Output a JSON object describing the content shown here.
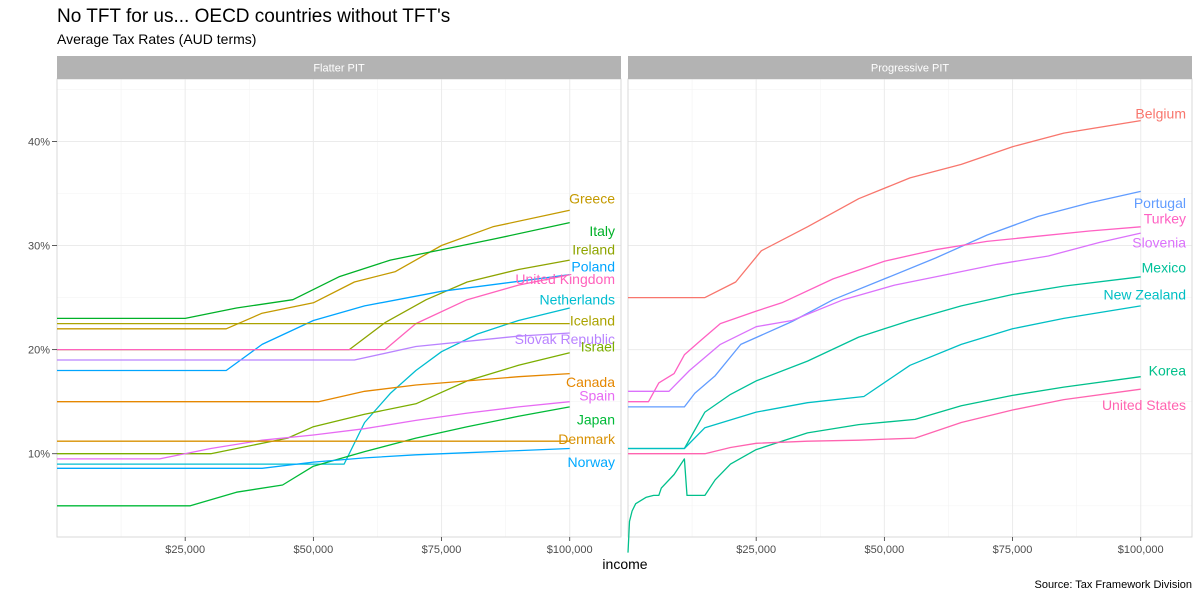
{
  "chart_data": {
    "type": "line",
    "title": "No TFT for us... OECD countries without TFT's",
    "subtitle": "Average Tax Rates (AUD terms)",
    "xlabel": "income",
    "ylabel": "",
    "caption": "Source: Tax Framework Division",
    "xlim": [
      0,
      110000
    ],
    "ylim": [
      2,
      46
    ],
    "x_ticks": [
      25000,
      50000,
      75000,
      100000
    ],
    "x_tick_labels": [
      "$25,000",
      "$50,000",
      "$75,000",
      "$100,000"
    ],
    "y_ticks": [
      10,
      20,
      30,
      40
    ],
    "y_tick_labels": [
      "10%",
      "20%",
      "30%",
      "40%"
    ],
    "grid": true,
    "legend": "none",
    "panels": [
      {
        "name": "Flatter PIT",
        "series": [
          {
            "name": "Greece",
            "color": "#C49A00",
            "x": [
              0,
              33000,
              40000,
              50000,
              58000,
              66000,
              75000,
              85000,
              100000
            ],
            "y": [
              22,
              22,
              23.5,
              24.5,
              26.5,
              27.5,
              30,
              31.8,
              33.4
            ]
          },
          {
            "name": "Italy",
            "color": "#00B128",
            "x": [
              0,
              25000,
              35000,
              46000,
              55000,
              65000,
              75000,
              85000,
              100000
            ],
            "y": [
              23,
              23,
              24,
              24.8,
              27,
              28.6,
              29.6,
              30.6,
              32.2
            ]
          },
          {
            "name": "Ireland",
            "color": "#8EA400",
            "x": [
              0,
              57000,
              64000,
              72000,
              80000,
              90000,
              100000
            ],
            "y": [
              20,
              20,
              22.6,
              24.8,
              26.5,
              27.7,
              28.6
            ]
          },
          {
            "name": "Poland",
            "color": "#00A5FF",
            "x": [
              0,
              33000,
              40000,
              50000,
              60000,
              75000,
              100000
            ],
            "y": [
              18,
              18,
              20.5,
              22.8,
              24.2,
              25.6,
              27.2
            ]
          },
          {
            "name": "United Kingdom",
            "color": "#FF62BC",
            "x": [
              0,
              64000,
              70000,
              80000,
              90000,
              100000
            ],
            "y": [
              20,
              20,
              22.5,
              24.8,
              26.2,
              27.2
            ]
          },
          {
            "name": "Netherlands",
            "color": "#00BDD0",
            "x": [
              0,
              56000,
              60000,
              65000,
              70000,
              75000,
              82000,
              90000,
              100000
            ],
            "y": [
              9,
              9,
              13,
              15.8,
              18,
              19.8,
              21.5,
              22.8,
              24
            ]
          },
          {
            "name": "Iceland",
            "color": "#ABA300",
            "x": [
              0,
              100000
            ],
            "y": [
              22.5,
              22.5
            ]
          },
          {
            "name": "Slovak Republic",
            "color": "#B983FF",
            "x": [
              0,
              58000,
              70000,
              80000,
              90000,
              100000
            ],
            "y": [
              19,
              19,
              20.3,
              20.8,
              21.3,
              21.6
            ]
          },
          {
            "name": "Israel",
            "color": "#7CAE00",
            "x": [
              0,
              30000,
              45000,
              50000,
              60000,
              70000,
              80000,
              90000,
              100000
            ],
            "y": [
              10,
              10,
              11.5,
              12.6,
              13.8,
              14.8,
              17,
              18.5,
              19.7
            ]
          },
          {
            "name": "Canada",
            "color": "#E58700",
            "x": [
              0,
              51000,
              60000,
              70000,
              80000,
              90000,
              100000
            ],
            "y": [
              15,
              15,
              16,
              16.6,
              17,
              17.4,
              17.7
            ]
          },
          {
            "name": "Spain",
            "color": "#E76BF3",
            "x": [
              0,
              20000,
              30000,
              40000,
              50000,
              60000,
              70000,
              80000,
              90000,
              100000
            ],
            "y": [
              9.5,
              9.5,
              10.5,
              11.3,
              11.8,
              12.4,
              13.2,
              13.9,
              14.5,
              15
            ]
          },
          {
            "name": "Japan",
            "color": "#00BA38",
            "x": [
              0,
              26000,
              35000,
              44000,
              50000,
              60000,
              70000,
              80000,
              90000,
              100000
            ],
            "y": [
              5,
              5,
              6.3,
              7,
              8.8,
              10.2,
              11.5,
              12.6,
              13.6,
              14.5
            ]
          },
          {
            "name": "Denmark",
            "color": "#D89000",
            "x": [
              0,
              100000
            ],
            "y": [
              11.2,
              11.2
            ]
          },
          {
            "name": "Norway",
            "color": "#00A9FF",
            "x": [
              0,
              40000,
              50000,
              60000,
              70000,
              80000,
              90000,
              100000
            ],
            "y": [
              8.6,
              8.6,
              9.2,
              9.6,
              9.9,
              10.1,
              10.3,
              10.5
            ]
          }
        ]
      },
      {
        "name": "Progressive PIT",
        "series": [
          {
            "name": "Belgium",
            "color": "#F8766D",
            "x": [
              0,
              15000,
              21000,
              26000,
              35000,
              45000,
              55000,
              65000,
              75000,
              85000,
              100000
            ],
            "y": [
              25,
              25,
              26.5,
              29.5,
              31.8,
              34.5,
              36.5,
              37.8,
              39.5,
              40.8,
              42
            ]
          },
          {
            "name": "Portugal",
            "color": "#619CFF",
            "x": [
              0,
              11000,
              13000,
              17000,
              22000,
              32000,
              40000,
              50000,
              60000,
              70000,
              80000,
              90000,
              100000
            ],
            "y": [
              14.5,
              14.5,
              15.8,
              17.5,
              20.5,
              22.7,
              24.8,
              26.8,
              28.8,
              31,
              32.8,
              34.1,
              35.2
            ]
          },
          {
            "name": "Turkey",
            "color": "#FF61C3",
            "x": [
              0,
              4000,
              6000,
              9000,
              11000,
              14000,
              18000,
              25000,
              30000,
              40000,
              50000,
              60000,
              70000,
              80000,
              90000,
              100000
            ],
            "y": [
              15,
              15,
              16.8,
              17.7,
              19.5,
              20.8,
              22.5,
              23.7,
              24.5,
              26.8,
              28.5,
              29.6,
              30.4,
              30.9,
              31.4,
              31.8
            ]
          },
          {
            "name": "Slovenia",
            "color": "#DB72FB",
            "x": [
              0,
              8000,
              12000,
              18000,
              25000,
              32000,
              42000,
              52000,
              62000,
              72000,
              82000,
              92000,
              100000
            ],
            "y": [
              16,
              16,
              18,
              20.5,
              22.2,
              22.8,
              24.8,
              26.2,
              27.2,
              28.2,
              29,
              30.3,
              31.2
            ]
          },
          {
            "name": "Mexico",
            "color": "#00C19A",
            "x": [
              0,
              11000,
              15000,
              20000,
              25000,
              35000,
              45000,
              55000,
              65000,
              75000,
              85000,
              100000
            ],
            "y": [
              10.5,
              10.5,
              14,
              15.7,
              17,
              18.9,
              21.2,
              22.8,
              24.2,
              25.3,
              26.1,
              27
            ]
          },
          {
            "name": "New Zealand",
            "color": "#00BFC4",
            "x": [
              0,
              11000,
              15000,
              25000,
              35000,
              46000,
              55000,
              65000,
              75000,
              85000,
              100000
            ],
            "y": [
              10.5,
              10.5,
              12.5,
              14,
              14.9,
              15.5,
              18.5,
              20.5,
              22,
              23,
              24.2
            ]
          },
          {
            "name": "Korea",
            "color": "#00C08B",
            "x": [
              0,
              300,
              800,
              1500,
              2500,
              3500,
              5000,
              6000,
              6500,
              9000,
              11000,
              11500,
              14000,
              15000,
              17000,
              20000,
              25000,
              35000,
              45000,
              56000,
              65000,
              75000,
              85000,
              100000
            ],
            "y": [
              0.5,
              3.5,
              4.5,
              5.2,
              5.5,
              5.8,
              6,
              6,
              6.7,
              8,
              9.5,
              6,
              6,
              6,
              7.5,
              9,
              10.4,
              12,
              12.8,
              13.3,
              14.6,
              15.6,
              16.4,
              17.4
            ]
          },
          {
            "name": "United States",
            "color": "#FF64B0",
            "x": [
              0,
              15000,
              20000,
              25000,
              35000,
              45000,
              56000,
              65000,
              75000,
              85000,
              100000
            ],
            "y": [
              10,
              10,
              10.6,
              11,
              11.2,
              11.3,
              11.5,
              13,
              14.2,
              15.2,
              16.2
            ]
          }
        ]
      }
    ],
    "label_positions": {
      "Flatter PIT": [
        {
          "name": "Greece",
          "y": 34.5
        },
        {
          "name": "Italy",
          "y": 31.4
        },
        {
          "name": "Ireland",
          "y": 29.6
        },
        {
          "name": "Poland",
          "y": 28.0
        },
        {
          "name": "United Kingdom",
          "y": 26.8
        },
        {
          "name": "Netherlands",
          "y": 24.8
        },
        {
          "name": "Iceland",
          "y": 22.8
        },
        {
          "name": "Slovak Republic",
          "y": 21.0
        },
        {
          "name": "Israel",
          "y": 20.3
        },
        {
          "name": "Canada",
          "y": 16.9
        },
        {
          "name": "Spain",
          "y": 15.6
        },
        {
          "name": "Japan",
          "y": 13.3
        },
        {
          "name": "Denmark",
          "y": 11.4
        },
        {
          "name": "Norway",
          "y": 9.2
        }
      ],
      "Progressive PIT": [
        {
          "name": "Belgium",
          "y": 42.7
        },
        {
          "name": "Portugal",
          "y": 34.1
        },
        {
          "name": "Turkey",
          "y": 32.6
        },
        {
          "name": "Slovenia",
          "y": 30.3
        },
        {
          "name": "Mexico",
          "y": 27.9
        },
        {
          "name": "New Zealand",
          "y": 25.3
        },
        {
          "name": "Korea",
          "y": 18.0
        },
        {
          "name": "United States",
          "y": 14.7
        }
      ]
    }
  }
}
